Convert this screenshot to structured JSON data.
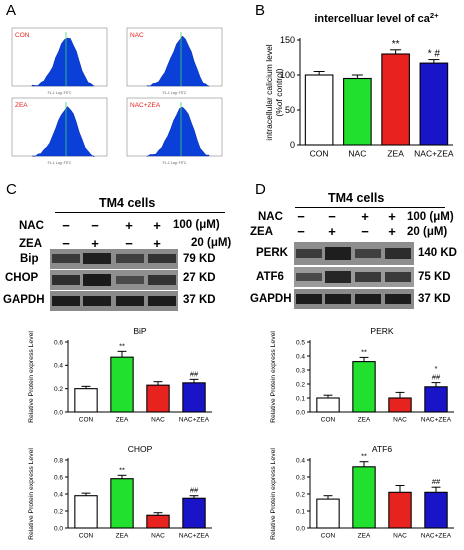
{
  "panels": {
    "A": {
      "label": "A",
      "histograms": [
        {
          "title": "CON",
          "axis": "FL-1 Log: FITC",
          "title_color": "#e8231f"
        },
        {
          "title": "NAC",
          "axis": "FL-1 Log: FITC",
          "title_color": "#e8231f"
        },
        {
          "title": "ZEA",
          "axis": "FL-1 Log: FITC",
          "title_color": "#e8231f"
        },
        {
          "title": "NAC+ZEA",
          "axis": "FL-1 Log: FITC",
          "title_color": "#e8231f"
        }
      ],
      "hist_fill": "#0a3fd8"
    },
    "B": {
      "label": "B"
    },
    "C": {
      "label": "C",
      "header": "TM4 cells",
      "rows": [
        {
          "name": "NAC",
          "signs": [
            "−",
            "−",
            "+",
            "+"
          ],
          "dose": "100 (μM)"
        },
        {
          "name": "ZEA",
          "signs": [
            "−",
            "+",
            "−",
            "+"
          ],
          "dose": "20 (μM)"
        }
      ],
      "blots": [
        {
          "name": "Bip",
          "kd": "79 KD"
        },
        {
          "name": "CHOP",
          "kd": "27 KD"
        },
        {
          "name": "GAPDH",
          "kd": "37 KD"
        }
      ]
    },
    "D": {
      "label": "D",
      "header": "TM4 cells",
      "rows": [
        {
          "name": "NAC",
          "signs": [
            "−",
            "−",
            "+",
            "+"
          ],
          "dose": "100 (μM)"
        },
        {
          "name": "ZEA",
          "signs": [
            "−",
            "+",
            "−",
            "+"
          ],
          "dose": "20 (μM)"
        }
      ],
      "blots": [
        {
          "name": "PERK",
          "kd": "140 KD"
        },
        {
          "name": "ATF6",
          "kd": "75 KD"
        },
        {
          "name": "GAPDH",
          "kd": "37 KD"
        }
      ]
    }
  },
  "chart_data": [
    {
      "id": "calcium",
      "type": "bar",
      "title": "intercelluar level of ca",
      "title_sup": "2+",
      "ylabel_lines": [
        "intracellular calicium level",
        "(%of control)"
      ],
      "categories": [
        "CON",
        "NAC",
        "ZEA",
        "NAC+ZEA"
      ],
      "values": [
        100,
        95,
        130,
        117
      ],
      "errors": [
        5,
        5,
        6,
        5
      ],
      "annotations": [
        "",
        "",
        "**",
        "* #"
      ],
      "colors": [
        "#ffffff",
        "#22e02e",
        "#e8231f",
        "#1a14c8"
      ],
      "ylim": [
        0,
        150
      ],
      "yticks": [
        0,
        50,
        100,
        150
      ],
      "grid": false
    },
    {
      "id": "bip",
      "type": "bar",
      "title": "BiP",
      "ylabel": "Relative Protein express Level",
      "categories": [
        "CON",
        "ZEA",
        "NAC",
        "NAC+ZEA"
      ],
      "values": [
        0.2,
        0.47,
        0.23,
        0.25
      ],
      "errors": [
        0.02,
        0.05,
        0.03,
        0.03
      ],
      "annotations": [
        "",
        "**",
        "",
        "##"
      ],
      "colors": [
        "#ffffff",
        "#22e02e",
        "#e8231f",
        "#1a14c8"
      ],
      "ylim": [
        0,
        0.6
      ],
      "yticks": [
        0.0,
        0.2,
        0.4,
        0.6
      ],
      "grid": false
    },
    {
      "id": "perk",
      "type": "bar",
      "title": "PERK",
      "ylabel": "Relative Protein express Level",
      "categories": [
        "CON",
        "ZEA",
        "NAC",
        "NAC+ZEA"
      ],
      "values": [
        0.1,
        0.36,
        0.1,
        0.18
      ],
      "errors": [
        0.02,
        0.03,
        0.04,
        0.03
      ],
      "annotations": [
        "",
        "**",
        "",
        "*|##"
      ],
      "colors": [
        "#ffffff",
        "#22e02e",
        "#e8231f",
        "#1a14c8"
      ],
      "ylim": [
        0,
        0.5
      ],
      "yticks": [
        0.0,
        0.1,
        0.2,
        0.3,
        0.4,
        0.5
      ],
      "grid": false
    },
    {
      "id": "chop",
      "type": "bar",
      "title": "CHOP",
      "ylabel": "Relative Protein express Level",
      "categories": [
        "CON",
        "ZEA",
        "NAC",
        "NAC+ZEA"
      ],
      "values": [
        0.38,
        0.58,
        0.15,
        0.35
      ],
      "errors": [
        0.03,
        0.04,
        0.03,
        0.03
      ],
      "annotations": [
        "",
        "**",
        "",
        "##"
      ],
      "colors": [
        "#ffffff",
        "#22e02e",
        "#e8231f",
        "#1a14c8"
      ],
      "ylim": [
        0,
        0.8
      ],
      "yticks": [
        0.0,
        0.2,
        0.4,
        0.6,
        0.8
      ],
      "grid": false
    },
    {
      "id": "atf6",
      "type": "bar",
      "title": "ATF6",
      "ylabel": "Relative Protein express Level",
      "categories": [
        "CON",
        "ZEA",
        "NAC",
        "NAC+ZEA"
      ],
      "values": [
        0.17,
        0.36,
        0.21,
        0.21
      ],
      "errors": [
        0.02,
        0.03,
        0.04,
        0.03
      ],
      "annotations": [
        "",
        "**",
        "",
        "##"
      ],
      "colors": [
        "#ffffff",
        "#22e02e",
        "#e8231f",
        "#1a14c8"
      ],
      "ylim": [
        0,
        0.4
      ],
      "yticks": [
        0.0,
        0.1,
        0.2,
        0.3,
        0.4
      ],
      "grid": false
    }
  ]
}
